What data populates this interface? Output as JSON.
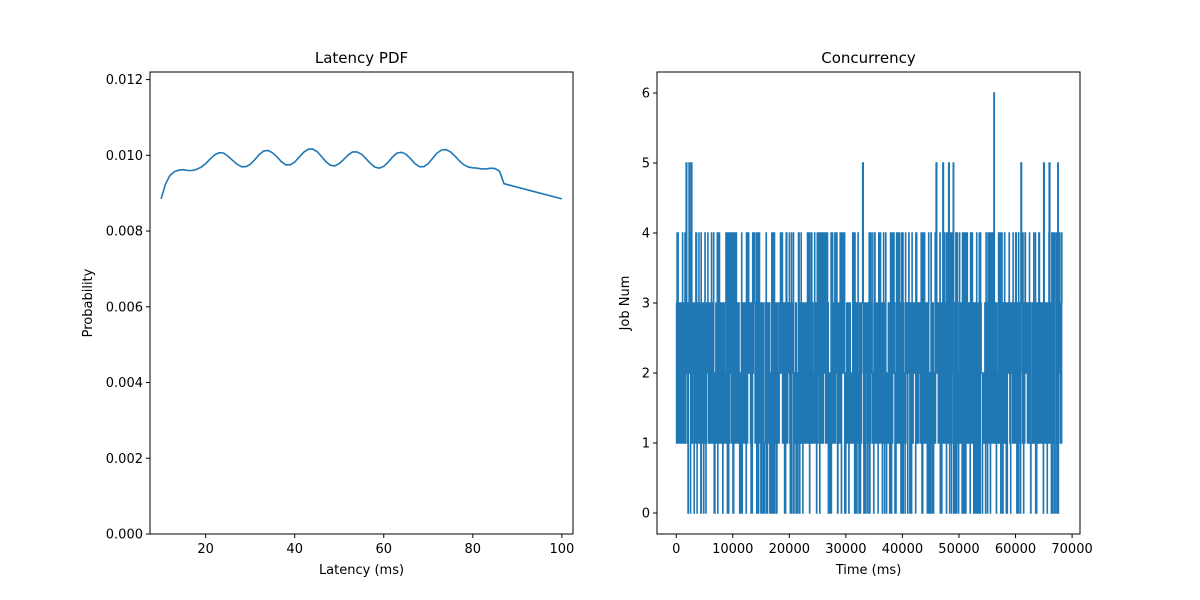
{
  "chart_data": [
    {
      "type": "line",
      "title": "Latency PDF",
      "xlabel": "Latency (ms)",
      "ylabel": "Probability",
      "xlim": [
        7.5,
        102.5
      ],
      "ylim": [
        0.0,
        0.0122
      ],
      "xticks": [
        20,
        40,
        60,
        80,
        100
      ],
      "yticks": [
        0.0,
        0.002,
        0.004,
        0.006,
        0.008,
        0.01,
        0.012
      ],
      "ytick_labels": [
        "0.000",
        "0.002",
        "0.004",
        "0.006",
        "0.008",
        "0.010",
        "0.012"
      ],
      "grid": false,
      "color": "#1f77b4",
      "series": [
        {
          "x": [
            10,
            11,
            12,
            13,
            14,
            15,
            16,
            17,
            18,
            19,
            20,
            21,
            22,
            23,
            24,
            25,
            26,
            27,
            28,
            29,
            30,
            31,
            32,
            33,
            34,
            35,
            36,
            37,
            38,
            39,
            40,
            41,
            42,
            43,
            44,
            45,
            46,
            47,
            48,
            49,
            50,
            51,
            52,
            53,
            54,
            55,
            56,
            57,
            58,
            59,
            60,
            61,
            62,
            63,
            64,
            65,
            66,
            67,
            68,
            69,
            70,
            71,
            72,
            73,
            74,
            75,
            76,
            77,
            78,
            79,
            80,
            81,
            82,
            83,
            84,
            85,
            86,
            87,
            88,
            89,
            90,
            91,
            92,
            93,
            94,
            95,
            96,
            97,
            98,
            99,
            100
          ],
          "y": [
            0.00885,
            0.00925,
            0.00947,
            0.00957,
            0.00961,
            0.00962,
            0.0096,
            0.0096,
            0.00963,
            0.00969,
            0.00978,
            0.0099,
            0.01001,
            0.01007,
            0.01006,
            0.00998,
            0.00987,
            0.00977,
            0.0097,
            0.0097,
            0.00976,
            0.00988,
            0.01002,
            0.01011,
            0.01013,
            0.01007,
            0.00996,
            0.00983,
            0.00975,
            0.00975,
            0.00982,
            0.00995,
            0.01008,
            0.01016,
            0.01017,
            0.0101,
            0.00997,
            0.00983,
            0.00974,
            0.00972,
            0.00978,
            0.00989,
            0.01001,
            0.01009,
            0.01009,
            0.01003,
            0.00991,
            0.00979,
            0.00969,
            0.00966,
            0.00971,
            0.00982,
            0.00996,
            0.01006,
            0.01008,
            0.01003,
            0.00991,
            0.00978,
            0.0097,
            0.0097,
            0.00978,
            0.00992,
            0.01006,
            0.01014,
            0.01015,
            0.01009,
            0.00998,
            0.00985,
            0.00975,
            0.00969,
            0.00967,
            0.00966,
            0.00964,
            0.00964,
            0.00966,
            0.00965,
            0.00958,
            0.00925,
            0.00885,
            0.00885,
            0.00885,
            0.00885,
            0.00885,
            0.00885,
            0.00885,
            0.00885,
            0.00885,
            0.00885,
            0.00885,
            0.00885,
            0.00885
          ]
        }
      ]
    },
    {
      "type": "line",
      "title": "Concurrency",
      "xlabel": "Time (ms)",
      "ylabel": "Job Num",
      "xlim": [
        -3400,
        71400
      ],
      "ylim": [
        -0.3,
        6.3
      ],
      "xticks": [
        0,
        10000,
        20000,
        30000,
        40000,
        50000,
        60000,
        70000
      ],
      "yticks": [
        0,
        1,
        2,
        3,
        4,
        5,
        6
      ],
      "grid": false,
      "color": "#1f77b4",
      "series": [
        {
          "x_range": [
            0,
            68200
          ],
          "value_range": [
            0,
            6
          ],
          "peak": {
            "x": 56200,
            "y": 6
          },
          "level_5_x": [
            1800,
            2300,
            2700,
            33000,
            46000,
            47200,
            48200,
            49000,
            61000,
            65000,
            66000,
            67500
          ]
        }
      ]
    }
  ]
}
